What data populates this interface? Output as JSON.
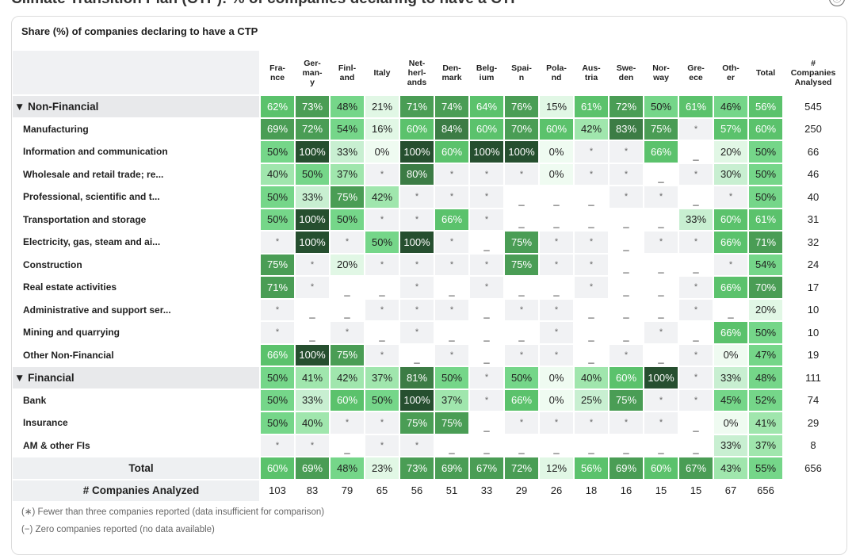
{
  "page_title": "Climate Transition Plan (CTP): % of companies declaring to have a CTP",
  "help_icon": "ⓘ",
  "card_title": "Share (%) of companies declaring to have a CTP",
  "columns": [
    "Fra-\nnce",
    "Ger-\nman-\ny",
    "Finl-\nand",
    "Italy",
    "Net-\nherl-\nands",
    "Den-\nmark",
    "Belg-\nium",
    "Spai-\nn",
    "Pola-\nnd",
    "Aus-\ntria",
    "Swe-\nden",
    "Nor-\nway",
    "Gre-\nece",
    "Oth-\ner",
    "Total",
    "#\nCompanies\nAnalysed"
  ],
  "rows": [
    {
      "label": "▼ Non-Financial",
      "type": "group",
      "values": [
        "62%",
        "73%",
        "48%",
        "21%",
        "71%",
        "74%",
        "64%",
        "76%",
        "15%",
        "61%",
        "72%",
        "50%",
        "61%",
        "46%",
        "56%",
        "545"
      ]
    },
    {
      "label": "Manufacturing",
      "values": [
        "69%",
        "72%",
        "54%",
        "16%",
        "60%",
        "84%",
        "60%",
        "70%",
        "60%",
        "42%",
        "83%",
        "75%",
        "*",
        "57%",
        "60%",
        "250"
      ]
    },
    {
      "label": "Information and communication",
      "values": [
        "50%",
        "100%",
        "33%",
        "0%",
        "100%",
        "60%",
        "100%",
        "100%",
        "0%",
        "*",
        "*",
        "66%",
        "_",
        "20%",
        "50%",
        "66"
      ]
    },
    {
      "label": "Wholesale and retail trade; re...",
      "values": [
        "40%",
        "50%",
        "37%",
        "*",
        "80%",
        "*",
        "*",
        "*",
        "0%",
        "*",
        "*",
        "_",
        "*",
        "30%",
        "50%",
        "46"
      ]
    },
    {
      "label": "Professional, scientific and t...",
      "values": [
        "50%",
        "33%",
        "75%",
        "42%",
        "*",
        "*",
        "*",
        "_",
        "_",
        "_",
        "*",
        "*",
        "_",
        "*",
        "50%",
        "40"
      ]
    },
    {
      "label": "Transportation and storage",
      "values": [
        "50%",
        "100%",
        "50%",
        "*",
        "*",
        "66%",
        "*",
        "_",
        "_",
        "_",
        "_",
        "_",
        "33%",
        "60%",
        "61%",
        "31"
      ]
    },
    {
      "label": "Electricity, gas, steam and ai...",
      "values": [
        "*",
        "100%",
        "*",
        "50%",
        "100%",
        "*",
        "_",
        "75%",
        "*",
        "*",
        "_",
        "*",
        "*",
        "66%",
        "71%",
        "32"
      ]
    },
    {
      "label": "Construction",
      "values": [
        "75%",
        "*",
        "20%",
        "*",
        "*",
        "*",
        "*",
        "75%",
        "*",
        "*",
        "_",
        "_",
        "_",
        "*",
        "54%",
        "24"
      ]
    },
    {
      "label": "Real estate activities",
      "values": [
        "71%",
        "*",
        "_",
        "_",
        "*",
        "_",
        "*",
        "_",
        "_",
        "*",
        "_",
        "_",
        "*",
        "66%",
        "70%",
        "17"
      ]
    },
    {
      "label": "Administrative and support ser...",
      "values": [
        "*",
        "_",
        "_",
        "*",
        "*",
        "*",
        "_",
        "*",
        "*",
        "_",
        "_",
        "_",
        "*",
        "_",
        "20%",
        "10"
      ]
    },
    {
      "label": "Mining and quarrying",
      "values": [
        "*",
        "_",
        "*",
        "_",
        "*",
        "_",
        "_",
        "_",
        "*",
        "_",
        "_",
        "*",
        "_",
        "66%",
        "50%",
        "10"
      ]
    },
    {
      "label": "Other Non-Financial",
      "values": [
        "66%",
        "100%",
        "75%",
        "*",
        "_",
        "*",
        "_",
        "*",
        "*",
        "_",
        "*",
        "_",
        "*",
        "0%",
        "47%",
        "19"
      ]
    },
    {
      "label": "▼ Financial",
      "type": "group",
      "values": [
        "50%",
        "41%",
        "42%",
        "37%",
        "81%",
        "50%",
        "*",
        "50%",
        "0%",
        "40%",
        "60%",
        "100%",
        "*",
        "33%",
        "48%",
        "111"
      ]
    },
    {
      "label": "Bank",
      "values": [
        "50%",
        "33%",
        "60%",
        "50%",
        "100%",
        "37%",
        "*",
        "66%",
        "0%",
        "25%",
        "75%",
        "*",
        "*",
        "45%",
        "52%",
        "74"
      ]
    },
    {
      "label": "Insurance",
      "values": [
        "50%",
        "40%",
        "*",
        "*",
        "75%",
        "75%",
        "_",
        "*",
        "*",
        "*",
        "*",
        "*",
        "_",
        "0%",
        "41%",
        "29"
      ]
    },
    {
      "label": "AM & other FIs",
      "values": [
        "*",
        "*",
        "_",
        "*",
        "*",
        "_",
        "_",
        "_",
        "_",
        "_",
        "_",
        "_",
        "_",
        "33%",
        "37%",
        "8"
      ]
    },
    {
      "label": "Total",
      "type": "total",
      "values": [
        "60%",
        "69%",
        "48%",
        "23%",
        "73%",
        "69%",
        "67%",
        "72%",
        "12%",
        "56%",
        "69%",
        "60%",
        "67%",
        "43%",
        "55%",
        "656"
      ]
    },
    {
      "label": "# Companies Analyzed",
      "type": "total",
      "values": [
        "103",
        "83",
        "79",
        "65",
        "56",
        "51",
        "33",
        "29",
        "26",
        "18",
        "16",
        "15",
        "15",
        "67",
        "656",
        ""
      ]
    }
  ],
  "legend": [
    "(∗)  Fewer than three companies reported (data insufficient for comparison)",
    "(−)  Zero companies reported (no data available)"
  ]
}
